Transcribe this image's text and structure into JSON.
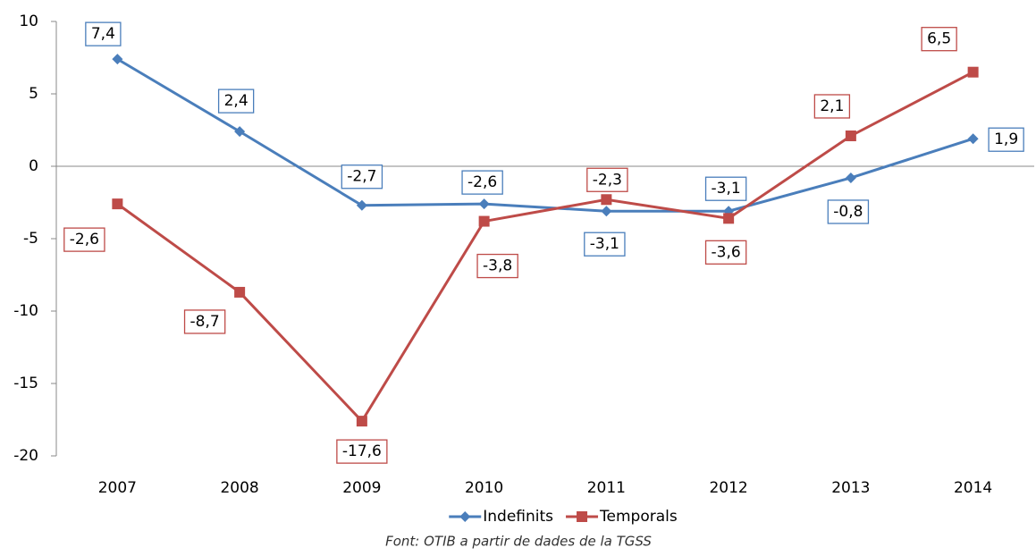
{
  "chart_data": {
    "type": "line",
    "categories": [
      "2007",
      "2008",
      "2009",
      "2010",
      "2011",
      "2012",
      "2013",
      "2014"
    ],
    "series": [
      {
        "name": "Indefinits",
        "color": "#4a7ebb",
        "marker": "diamond",
        "values": [
          7.4,
          2.4,
          -2.7,
          -2.6,
          -3.1,
          -3.1,
          -0.8,
          1.9
        ],
        "value_labels": [
          "7,4",
          "2,4",
          "-2,7",
          "-2,6",
          "-3,1",
          "-3,1",
          "-0,8",
          "1,9"
        ]
      },
      {
        "name": "Temporals",
        "color": "#be4b48",
        "marker": "square",
        "values": [
          -2.6,
          -8.7,
          -17.6,
          -3.8,
          -2.3,
          -3.6,
          2.1,
          6.5
        ],
        "value_labels": [
          "-2,6",
          "-8,7",
          "-17,6",
          "-3,8",
          "-2,3",
          "-3,6",
          "2,1",
          "6,5"
        ]
      }
    ],
    "ylim": [
      -20,
      10
    ],
    "yticks": [
      -20,
      -15,
      -10,
      -5,
      0,
      5,
      10
    ],
    "grid": false,
    "legend": "bottom",
    "source": "Font: OTIB a partir de dades de la TGSS"
  }
}
